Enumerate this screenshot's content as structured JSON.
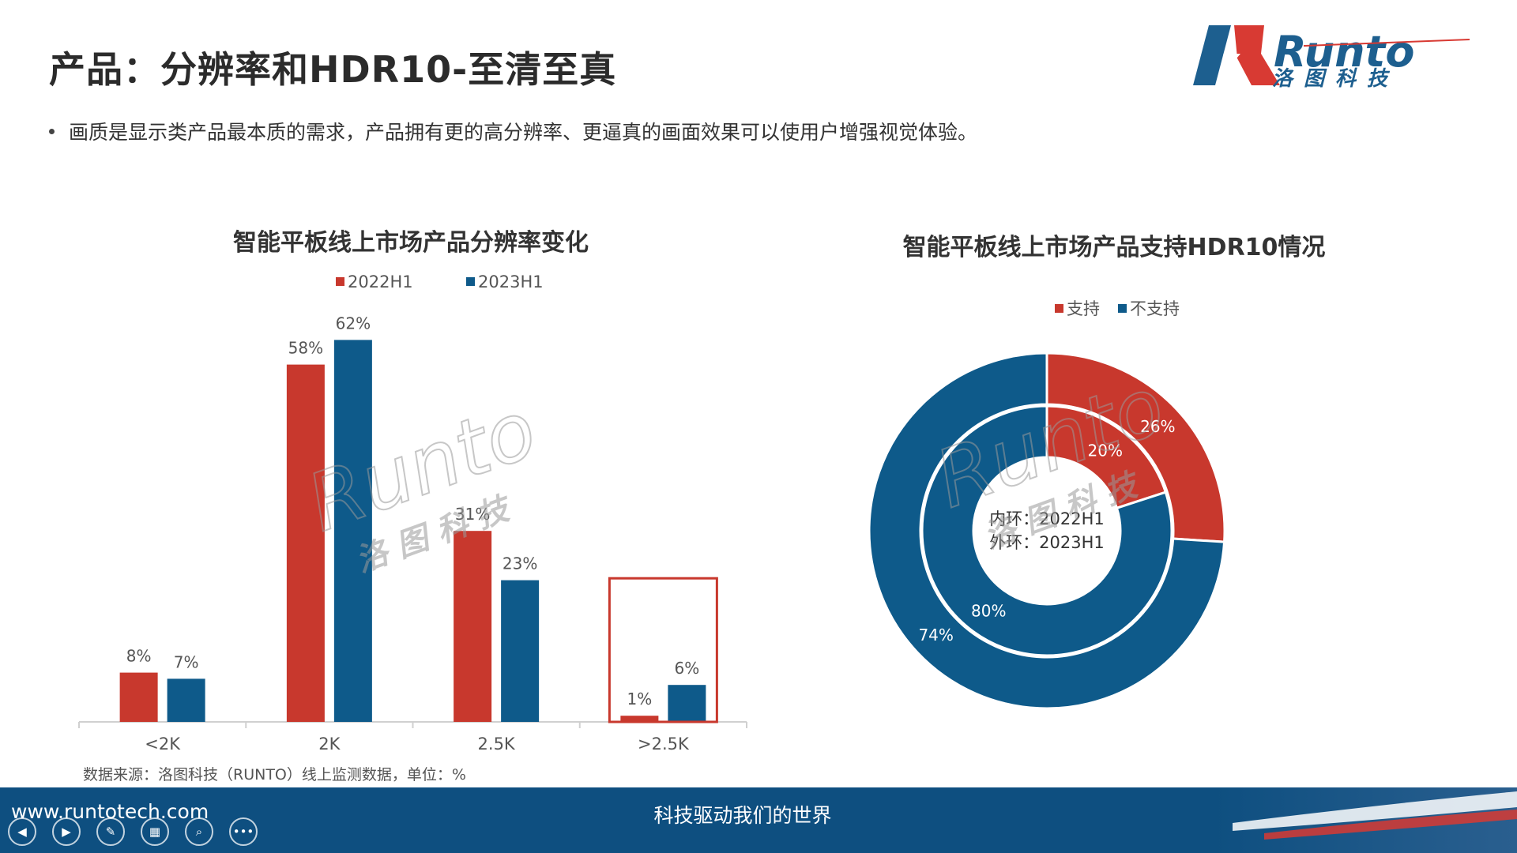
{
  "header": {
    "title": "产品：分辨率和HDR10-至清至真",
    "logo_text": "Runto",
    "logo_subtext": "洛图科技"
  },
  "bullet": "画质是显示类产品最本质的需求，产品拥有更的高分辨率、更逼真的画面效果可以使用户增强视觉体验。",
  "colors": {
    "red": "#c8382d",
    "blue": "#0e5a8a",
    "footer": "#0e4f80"
  },
  "chart_data": [
    {
      "type": "bar",
      "title": "智能平板线上市场产品分辨率变化",
      "categories": [
        "<2K",
        "2K",
        "2.5K",
        ">2.5K"
      ],
      "series": [
        {
          "name": "2022H1",
          "values": [
            8,
            58,
            31,
            1
          ],
          "color": "#c8382d"
        },
        {
          "name": "2023H1",
          "values": [
            7,
            62,
            23,
            6
          ],
          "color": "#0e5a8a"
        }
      ],
      "data_labels": [
        [
          "8%",
          "58%",
          "31%",
          "1%"
        ],
        [
          "7%",
          "62%",
          "23%",
          "6%"
        ]
      ],
      "highlighted_category": ">2.5K",
      "ylim": [
        0,
        70
      ],
      "legend_position": "top",
      "grid": false
    },
    {
      "type": "pie",
      "title": "智能平板线上市场产品支持HDR10情况",
      "labels": [
        "支持",
        "不支持"
      ],
      "colors": [
        "#c8382d",
        "#0e5a8a"
      ],
      "inner_ring": {
        "period": "2022H1",
        "values": [
          20,
          80
        ],
        "value_labels": [
          "20%",
          "80%"
        ]
      },
      "outer_ring": {
        "period": "2023H1",
        "values": [
          26,
          74
        ],
        "value_labels": [
          "26%",
          "74%"
        ]
      },
      "center_text": [
        "内环：2022H1",
        "外环：2023H1"
      ],
      "legend_position": "top"
    }
  ],
  "source_note": "数据来源：洛图科技（RUNTO）线上监测数据，单位：%",
  "watermark": {
    "text": "Runto",
    "subtext": "洛 图 科 技"
  },
  "footer": {
    "url": "www.runtotech.com",
    "slogan": "科技驱动我们的世界",
    "controls": [
      "prev-icon",
      "next-icon",
      "pen-icon",
      "slides-icon",
      "zoom-icon",
      "more-icon"
    ]
  }
}
